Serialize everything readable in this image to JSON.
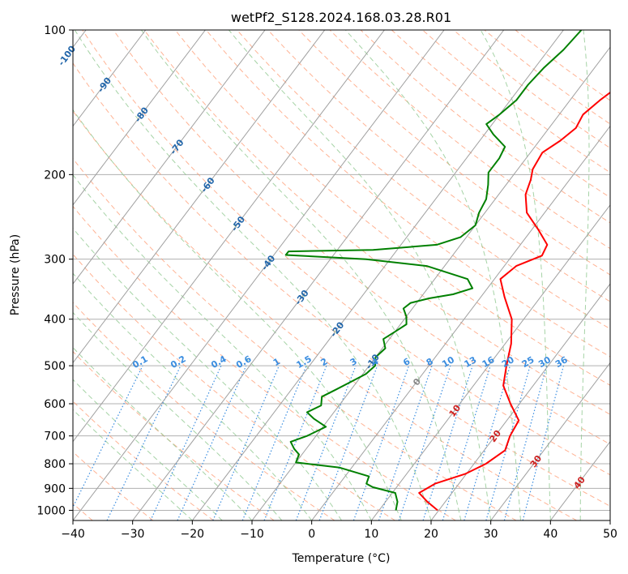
{
  "chart_data": {
    "type": "line",
    "title": "wetPf2_S128.2024.168.03.28.R01",
    "xlabel": "Temperature (°C)",
    "ylabel": "Pressure (hPa)",
    "xlim": [
      -40,
      50
    ],
    "ylim": [
      1050,
      100
    ],
    "y_scale": "log",
    "grid": true,
    "x_ticks": [
      "−40",
      "−30",
      "−20",
      "−10",
      "0",
      "10",
      "20",
      "30",
      "40",
      "50"
    ],
    "x_tick_values": [
      -40,
      -30,
      -20,
      -10,
      0,
      10,
      20,
      30,
      40,
      50
    ],
    "y_ticks": [
      "100",
      "200",
      "300",
      "400",
      "500",
      "600",
      "700",
      "800",
      "900",
      "1000"
    ],
    "y_tick_values": [
      100,
      200,
      300,
      400,
      500,
      600,
      700,
      800,
      900,
      1000
    ],
    "colors": {
      "temperature": "#ff0000",
      "dewpoint": "#008000",
      "dry_adiabat": "#ff9a70",
      "moist_adiabat": "#90c890",
      "isotherm": "#a0a0a0",
      "mixing_ratio": "#3a8de0",
      "isotherm_label": "#2266aa",
      "warm_isotherm_label": "#cc2222",
      "zero_label": "#888888"
    },
    "series": [
      {
        "key": "temperature",
        "points": [
          [
            19.8,
            1000
          ],
          [
            17.0,
            960
          ],
          [
            14.5,
            920
          ],
          [
            16.0,
            880
          ],
          [
            19.8,
            840
          ],
          [
            22.0,
            800
          ],
          [
            23.5,
            750
          ],
          [
            22.5,
            700
          ],
          [
            22.0,
            650
          ],
          [
            18.5,
            600
          ],
          [
            15.0,
            550
          ],
          [
            13.0,
            500
          ],
          [
            11.0,
            450
          ],
          [
            8.0,
            400
          ],
          [
            4.0,
            360
          ],
          [
            1.0,
            330
          ],
          [
            2.0,
            310
          ],
          [
            5.0,
            295
          ],
          [
            4.5,
            280
          ],
          [
            1.0,
            260
          ],
          [
            -3.0,
            240
          ],
          [
            -5.5,
            220
          ],
          [
            -6.5,
            205
          ],
          [
            -7.5,
            195
          ],
          [
            -8.0,
            180
          ],
          [
            -6.5,
            170
          ],
          [
            -5.5,
            160
          ],
          [
            -6.0,
            150
          ],
          [
            -5.0,
            140
          ],
          [
            -3.5,
            130
          ],
          [
            -2.5,
            120
          ],
          [
            -1.0,
            110
          ],
          [
            -1.0,
            100
          ]
        ]
      },
      {
        "key": "dewpoint",
        "points": [
          [
            12.8,
            1000
          ],
          [
            12.0,
            960
          ],
          [
            10.5,
            920
          ],
          [
            6.0,
            895
          ],
          [
            4.5,
            880
          ],
          [
            4.0,
            850
          ],
          [
            -2.0,
            815
          ],
          [
            -10.0,
            795
          ],
          [
            -10.5,
            765
          ],
          [
            -12.0,
            745
          ],
          [
            -13.5,
            720
          ],
          [
            -11.5,
            700
          ],
          [
            -9.5,
            670
          ],
          [
            -12.5,
            645
          ],
          [
            -14.5,
            625
          ],
          [
            -13.0,
            605
          ],
          [
            -14.0,
            580
          ],
          [
            -12.5,
            560
          ],
          [
            -11.0,
            540
          ],
          [
            -9.5,
            520
          ],
          [
            -9.0,
            500
          ],
          [
            -10.0,
            480
          ],
          [
            -9.5,
            460
          ],
          [
            -11.0,
            440
          ],
          [
            -10.0,
            425
          ],
          [
            -9.0,
            410
          ],
          [
            -10.0,
            395
          ],
          [
            -11.5,
            380
          ],
          [
            -11.0,
            370
          ],
          [
            -8.5,
            362
          ],
          [
            -5.0,
            355
          ],
          [
            -2.5,
            345
          ],
          [
            -4.5,
            330
          ],
          [
            -13.0,
            310
          ],
          [
            -24.0,
            300
          ],
          [
            -38.0,
            294
          ],
          [
            -38.0,
            289
          ],
          [
            -24.0,
            287
          ],
          [
            -14.0,
            280
          ],
          [
            -11.0,
            270
          ],
          [
            -10.0,
            255
          ],
          [
            -11.0,
            240
          ],
          [
            -11.5,
            225
          ],
          [
            -13.0,
            210
          ],
          [
            -14.5,
            198
          ],
          [
            -14.5,
            185
          ],
          [
            -15.0,
            175
          ],
          [
            -18.5,
            165
          ],
          [
            -21.0,
            157
          ],
          [
            -20.0,
            150
          ],
          [
            -19.0,
            140
          ],
          [
            -19.0,
            130
          ],
          [
            -18.5,
            120
          ],
          [
            -17.5,
            110
          ],
          [
            -17.0,
            100
          ]
        ]
      }
    ],
    "isotherm_labels": [
      {
        "label": "-100",
        "t": -100
      },
      {
        "label": "-90",
        "t": -90
      },
      {
        "label": "-80",
        "t": -80
      },
      {
        "label": "-70",
        "t": -70
      },
      {
        "label": "-60",
        "t": -60
      },
      {
        "label": "-50",
        "t": -50
      },
      {
        "label": "-40",
        "t": -40
      },
      {
        "label": "-30",
        "t": -30
      },
      {
        "label": "-20",
        "t": -20
      },
      {
        "label": "-10",
        "t": -10
      },
      {
        "label": "0",
        "t": 0
      },
      {
        "label": "10",
        "t": 10
      },
      {
        "label": "20",
        "t": 20
      },
      {
        "label": "30",
        "t": 30
      },
      {
        "label": "40",
        "t": 40
      }
    ],
    "mixing_ratio_labels": [
      "0.1",
      "0.2",
      "0.4",
      "0.6",
      "1",
      "1.5",
      "2",
      "3",
      "4",
      "6",
      "8",
      "10",
      "13",
      "16",
      "20",
      "25",
      "30",
      "36"
    ],
    "mixing_ratio_values": [
      0.1,
      0.2,
      0.4,
      0.6,
      1,
      1.5,
      2,
      3,
      4,
      6,
      8,
      10,
      13,
      16,
      20,
      25,
      30,
      36
    ]
  }
}
